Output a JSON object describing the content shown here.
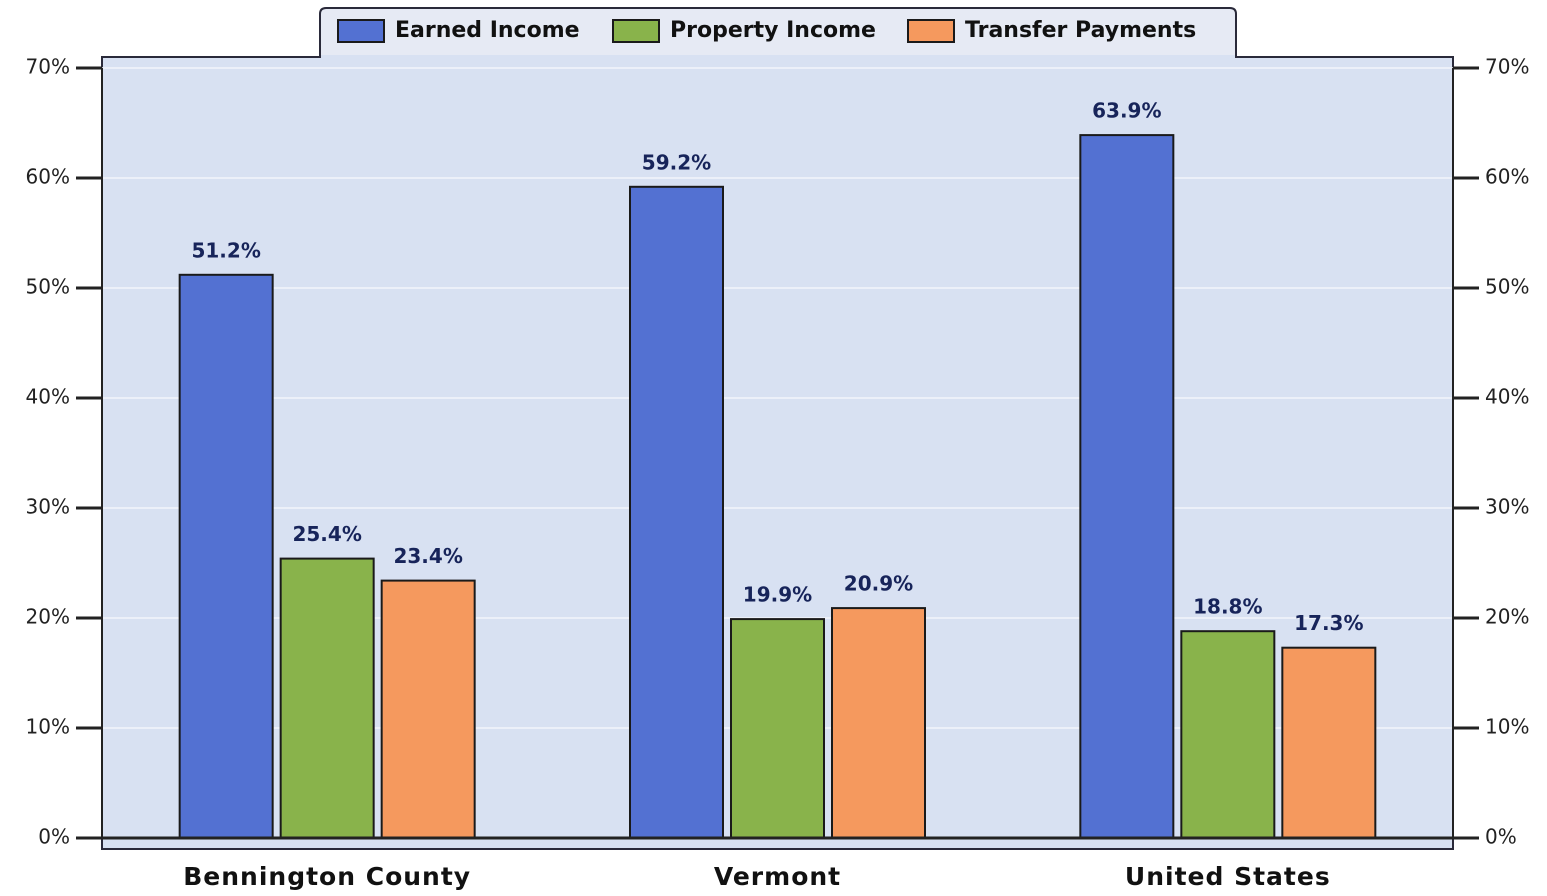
{
  "chart_data": {
    "type": "bar",
    "categories": [
      "Bennington County",
      "Vermont",
      "United States"
    ],
    "series": [
      {
        "name": "Earned Income",
        "color": "#5371d2",
        "values": [
          51.2,
          59.2,
          63.9
        ],
        "value_labels": [
          "51.2%",
          "59.2%",
          "63.9%"
        ]
      },
      {
        "name": "Property Income",
        "color": "#89b34b",
        "values": [
          25.4,
          19.9,
          18.8
        ],
        "value_labels": [
          "25.4%",
          "19.9%",
          "18.8%"
        ]
      },
      {
        "name": "Transfer Payments",
        "color": "#f5995e",
        "values": [
          23.4,
          20.9,
          17.3
        ],
        "value_labels": [
          "23.4%",
          "20.9%",
          "17.3%"
        ]
      }
    ],
    "ylim": [
      0,
      70
    ],
    "yticks": [
      {
        "value": 0,
        "label": "0%"
      },
      {
        "value": 10,
        "label": "10%"
      },
      {
        "value": 20,
        "label": "20%"
      },
      {
        "value": 30,
        "label": "30%"
      },
      {
        "value": 40,
        "label": "40%"
      },
      {
        "value": 50,
        "label": "50%"
      },
      {
        "value": 60,
        "label": "60%"
      },
      {
        "value": 70,
        "label": "70%"
      }
    ],
    "y2lim": [
      0,
      70
    ],
    "y2ticks": [
      {
        "value": 0,
        "label": "0%"
      },
      {
        "value": 10,
        "label": "10%"
      },
      {
        "value": 20,
        "label": "20%"
      },
      {
        "value": 30,
        "label": "30%"
      },
      {
        "value": 40,
        "label": "40%"
      },
      {
        "value": 50,
        "label": "50%"
      },
      {
        "value": 60,
        "label": "60%"
      },
      {
        "value": 70,
        "label": "70%"
      }
    ],
    "grid": true,
    "legend": "top"
  }
}
